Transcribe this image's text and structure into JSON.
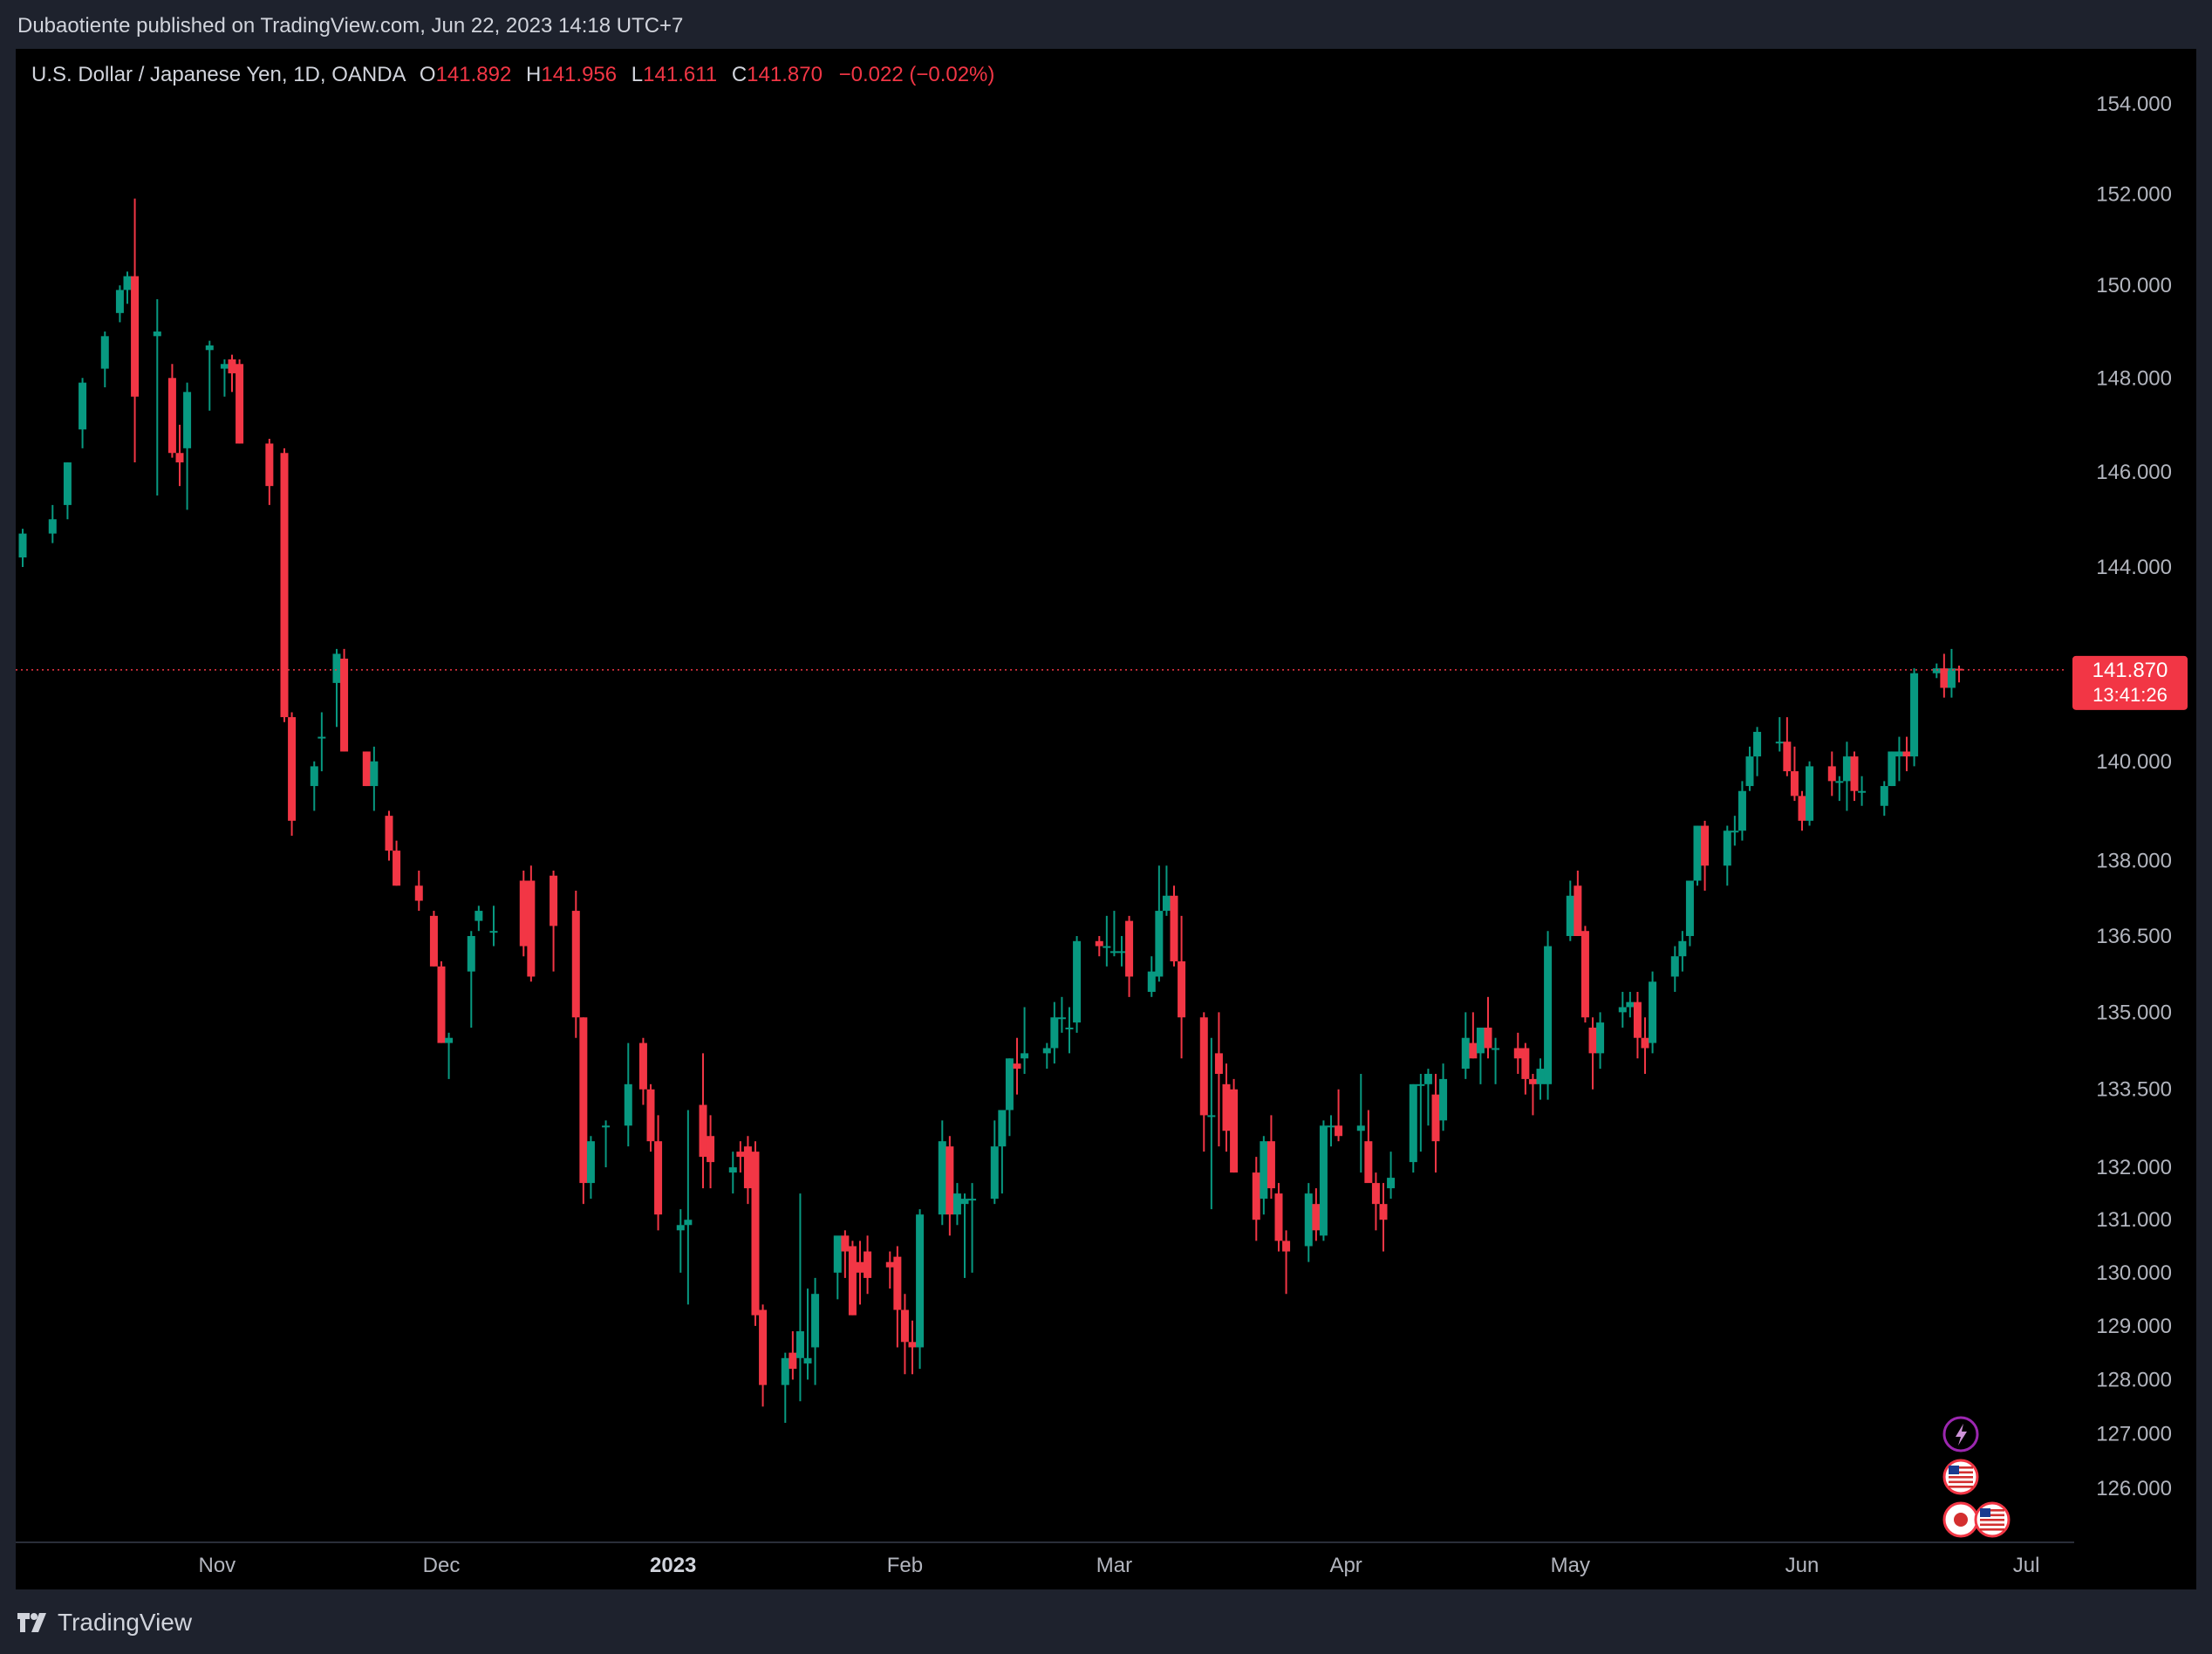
{
  "header": {
    "published": "Dubaotiente published on TradingView.com, Jun 22, 2023 14:18 UTC+7"
  },
  "legend": {
    "symbol": "U.S. Dollar / Japanese Yen, 1D, OANDA",
    "o_label": "O",
    "o_value": "141.892",
    "h_label": "H",
    "h_value": "141.956",
    "l_label": "L",
    "l_value": "141.611",
    "c_label": "C",
    "c_value": "141.870",
    "change": "−0.022 (−0.02%)"
  },
  "price_tag": {
    "price": "141.870",
    "countdown": "13:41:26"
  },
  "footer": {
    "brand": "TradingView"
  },
  "colors": {
    "up": "#089981",
    "down": "#f23645",
    "background": "#000000",
    "frame": "#1e222d",
    "axis_text": "#b2b5be",
    "price_line": "#f23645",
    "event_purple": "#9c27b0"
  },
  "event_icons": [
    "lightning-icon",
    "us-flag-icon",
    "japan-flag-icon",
    "us-flag-icon"
  ],
  "chart_data": {
    "type": "candlestick",
    "title": "U.S. Dollar / Japanese Yen, 1D, OANDA",
    "y_scale": "log",
    "y_ticks": [
      "154.000",
      "152.000",
      "150.000",
      "148.000",
      "146.000",
      "144.000",
      "140.000",
      "138.000",
      "136.500",
      "135.000",
      "133.500",
      "132.000",
      "131.000",
      "130.000",
      "129.000",
      "128.000",
      "127.000",
      "126.000"
    ],
    "x_ticks": [
      "Nov",
      "Dec",
      "2023",
      "Feb",
      "Mar",
      "Apr",
      "May",
      "Jun",
      "Jul"
    ],
    "last_price": 141.87,
    "ohlc_points": [
      [
        "2022-10-06",
        144.2,
        144.8,
        144.0,
        144.7
      ],
      [
        "2022-10-10",
        144.7,
        145.3,
        144.5,
        145.0
      ],
      [
        "2022-10-12",
        145.3,
        146.2,
        145.0,
        146.2
      ],
      [
        "2022-10-14",
        146.9,
        148.0,
        146.5,
        147.9
      ],
      [
        "2022-10-17",
        148.2,
        149.0,
        147.8,
        148.9
      ],
      [
        "2022-10-19",
        149.4,
        150.0,
        149.2,
        149.9
      ],
      [
        "2022-10-20",
        149.9,
        150.3,
        149.6,
        150.2
      ],
      [
        "2022-10-21",
        150.2,
        151.9,
        146.2,
        147.6
      ],
      [
        "2022-10-24",
        148.9,
        149.7,
        145.5,
        149.0
      ],
      [
        "2022-10-26",
        148.0,
        148.3,
        146.3,
        146.4
      ],
      [
        "2022-10-27",
        146.4,
        147.0,
        145.7,
        146.2
      ],
      [
        "2022-10-28",
        146.5,
        147.9,
        145.2,
        147.7
      ],
      [
        "2022-10-31",
        148.6,
        148.8,
        147.3,
        148.7
      ],
      [
        "2022-11-02",
        148.2,
        148.4,
        147.6,
        148.3
      ],
      [
        "2022-11-03",
        148.4,
        148.5,
        147.7,
        148.1
      ],
      [
        "2022-11-04",
        148.3,
        148.4,
        146.6,
        146.6
      ],
      [
        "2022-11-08",
        146.6,
        146.7,
        145.3,
        145.7
      ],
      [
        "2022-11-10",
        146.4,
        146.5,
        140.8,
        140.9
      ],
      [
        "2022-11-11",
        140.9,
        141.0,
        138.5,
        138.8
      ],
      [
        "2022-11-14",
        139.5,
        140.0,
        139.0,
        139.9
      ],
      [
        "2022-11-15",
        140.5,
        141.0,
        139.8,
        140.5
      ],
      [
        "2022-11-17",
        141.6,
        142.3,
        140.7,
        142.2
      ],
      [
        "2022-11-18",
        142.1,
        142.3,
        140.2,
        140.2
      ],
      [
        "2022-11-21",
        140.2,
        140.2,
        139.5,
        139.5
      ],
      [
        "2022-11-22",
        139.5,
        140.3,
        139.0,
        140.0
      ],
      [
        "2022-11-24",
        138.9,
        139.0,
        138.0,
        138.2
      ],
      [
        "2022-11-25",
        138.2,
        138.4,
        137.5,
        137.5
      ],
      [
        "2022-11-28",
        137.5,
        137.8,
        137.0,
        137.2
      ],
      [
        "2022-11-30",
        136.9,
        137.0,
        135.9,
        135.9
      ],
      [
        "2022-12-01",
        135.9,
        136.0,
        134.4,
        134.4
      ],
      [
        "2022-12-02",
        134.4,
        134.6,
        133.7,
        134.5
      ],
      [
        "2022-12-05",
        135.8,
        136.6,
        134.7,
        136.5
      ],
      [
        "2022-12-06",
        136.8,
        137.1,
        136.6,
        137.0
      ],
      [
        "2022-12-08",
        136.6,
        137.1,
        136.3,
        136.6
      ],
      [
        "2022-12-12",
        137.6,
        137.8,
        136.1,
        136.3
      ],
      [
        "2022-12-13",
        137.6,
        137.9,
        135.6,
        135.7
      ],
      [
        "2022-12-16",
        137.7,
        137.8,
        135.8,
        136.7
      ],
      [
        "2022-12-19",
        137.0,
        137.4,
        134.5,
        134.9
      ],
      [
        "2022-12-20",
        134.9,
        134.9,
        131.3,
        131.7
      ],
      [
        "2022-12-21",
        131.7,
        132.6,
        131.4,
        132.5
      ],
      [
        "2022-12-23",
        132.8,
        132.9,
        132.0,
        132.8
      ],
      [
        "2022-12-26",
        132.8,
        134.4,
        132.4,
        133.6
      ],
      [
        "2022-12-28",
        134.4,
        134.5,
        133.2,
        133.5
      ],
      [
        "2022-12-29",
        133.5,
        133.6,
        132.3,
        132.5
      ],
      [
        "2022-12-30",
        132.5,
        133.0,
        130.8,
        131.1
      ],
      [
        "2023-01-02",
        130.8,
        131.2,
        130.0,
        130.9
      ],
      [
        "2023-01-03",
        130.9,
        133.1,
        129.4,
        131.0
      ],
      [
        "2023-01-05",
        133.2,
        134.2,
        131.6,
        132.2
      ],
      [
        "2023-01-06",
        132.6,
        133.0,
        131.6,
        132.1
      ],
      [
        "2023-01-09",
        131.9,
        132.3,
        131.5,
        132.0
      ],
      [
        "2023-01-10",
        132.3,
        132.5,
        131.9,
        132.2
      ],
      [
        "2023-01-11",
        132.4,
        132.6,
        131.3,
        131.6
      ],
      [
        "2023-01-12",
        132.3,
        132.5,
        129.0,
        129.2
      ],
      [
        "2023-01-13",
        129.3,
        129.4,
        127.5,
        127.9
      ],
      [
        "2023-01-16",
        127.9,
        128.5,
        127.2,
        128.4
      ],
      [
        "2023-01-17",
        128.5,
        128.9,
        128.0,
        128.2
      ],
      [
        "2023-01-18",
        128.4,
        131.5,
        127.6,
        128.9
      ],
      [
        "2023-01-19",
        128.3,
        129.7,
        128.0,
        128.4
      ],
      [
        "2023-01-20",
        128.6,
        129.9,
        127.9,
        129.6
      ],
      [
        "2023-01-23",
        130.0,
        130.6,
        129.5,
        130.7
      ],
      [
        "2023-01-24",
        130.7,
        130.8,
        129.9,
        130.4
      ],
      [
        "2023-01-25",
        130.5,
        130.6,
        129.2,
        129.2
      ],
      [
        "2023-01-26",
        130.2,
        130.6,
        129.4,
        130.0
      ],
      [
        "2023-01-27",
        130.4,
        130.7,
        129.6,
        129.9
      ],
      [
        "2023-01-30",
        130.2,
        130.4,
        129.7,
        130.1
      ],
      [
        "2023-01-31",
        130.3,
        130.5,
        128.6,
        129.3
      ],
      [
        "2023-02-01",
        129.3,
        129.6,
        128.1,
        128.7
      ],
      [
        "2023-02-02",
        128.7,
        129.1,
        128.1,
        128.6
      ],
      [
        "2023-02-03",
        128.6,
        131.2,
        128.2,
        131.1
      ],
      [
        "2023-02-06",
        131.1,
        132.9,
        130.9,
        132.5
      ],
      [
        "2023-02-07",
        132.4,
        132.6,
        130.7,
        131.1
      ],
      [
        "2023-02-08",
        131.1,
        131.7,
        130.9,
        131.5
      ],
      [
        "2023-02-09",
        131.3,
        131.5,
        129.9,
        131.4
      ],
      [
        "2023-02-10",
        131.4,
        131.7,
        130.0,
        131.4
      ],
      [
        "2023-02-13",
        131.4,
        132.9,
        131.3,
        132.4
      ],
      [
        "2023-02-14",
        132.4,
        133.1,
        131.5,
        133.1
      ],
      [
        "2023-02-15",
        133.1,
        134.1,
        132.6,
        134.1
      ],
      [
        "2023-02-16",
        134.0,
        134.5,
        133.4,
        133.9
      ],
      [
        "2023-02-17",
        134.1,
        135.1,
        133.8,
        134.2
      ],
      [
        "2023-02-20",
        134.2,
        134.4,
        133.9,
        134.3
      ],
      [
        "2023-02-21",
        134.3,
        135.2,
        134.0,
        134.9
      ],
      [
        "2023-02-22",
        134.9,
        135.3,
        134.6,
        134.9
      ],
      [
        "2023-02-23",
        134.7,
        135.1,
        134.2,
        134.7
      ],
      [
        "2023-02-24",
        134.8,
        136.5,
        134.6,
        136.4
      ],
      [
        "2023-02-27",
        136.4,
        136.5,
        136.1,
        136.3
      ],
      [
        "2023-02-28",
        136.3,
        136.9,
        135.9,
        136.3
      ],
      [
        "2023-03-01",
        136.2,
        137.0,
        136.1,
        136.2
      ],
      [
        "2023-03-02",
        136.2,
        136.5,
        135.9,
        136.2
      ],
      [
        "2023-03-03",
        136.8,
        136.9,
        135.3,
        135.7
      ],
      [
        "2023-03-06",
        135.4,
        136.1,
        135.3,
        135.8
      ],
      [
        "2023-03-07",
        135.7,
        137.9,
        135.6,
        137.0
      ],
      [
        "2023-03-08",
        137.0,
        137.9,
        136.9,
        137.3
      ],
      [
        "2023-03-09",
        137.3,
        137.5,
        135.9,
        136.0
      ],
      [
        "2023-03-10",
        136.0,
        136.9,
        134.1,
        134.9
      ],
      [
        "2023-03-13",
        134.9,
        135.0,
        132.3,
        133.0
      ],
      [
        "2023-03-14",
        133.0,
        134.5,
        131.2,
        133.0
      ],
      [
        "2023-03-15",
        134.2,
        135.0,
        132.4,
        133.8
      ],
      [
        "2023-03-16",
        133.6,
        134.0,
        132.3,
        132.7
      ],
      [
        "2023-03-17",
        133.5,
        133.7,
        131.9,
        131.9
      ],
      [
        "2023-03-20",
        131.9,
        132.2,
        130.6,
        131.0
      ],
      [
        "2023-03-21",
        131.4,
        132.6,
        131.1,
        132.5
      ],
      [
        "2023-03-22",
        132.5,
        133.0,
        131.4,
        131.6
      ],
      [
        "2023-03-23",
        131.5,
        131.7,
        130.4,
        130.6
      ],
      [
        "2023-03-24",
        130.6,
        130.8,
        129.6,
        130.4
      ],
      [
        "2023-03-27",
        130.5,
        131.7,
        130.2,
        131.5
      ],
      [
        "2023-03-28",
        131.3,
        131.6,
        130.6,
        130.8
      ],
      [
        "2023-03-29",
        130.7,
        132.9,
        130.6,
        132.8
      ],
      [
        "2023-03-30",
        132.8,
        133.0,
        132.4,
        132.8
      ],
      [
        "2023-03-31",
        132.8,
        133.5,
        132.5,
        132.6
      ],
      [
        "2023-04-03",
        132.7,
        133.8,
        131.9,
        132.8
      ],
      [
        "2023-04-04",
        132.5,
        133.1,
        131.8,
        131.7
      ],
      [
        "2023-04-05",
        131.7,
        131.9,
        130.8,
        131.3
      ],
      [
        "2023-04-06",
        131.3,
        131.7,
        130.4,
        131.0
      ],
      [
        "2023-04-07",
        131.6,
        132.3,
        131.4,
        131.8
      ],
      [
        "2023-04-10",
        132.1,
        133.6,
        131.9,
        133.6
      ],
      [
        "2023-04-11",
        133.6,
        133.8,
        132.3,
        133.6
      ],
      [
        "2023-04-12",
        133.6,
        133.9,
        132.8,
        133.8
      ],
      [
        "2023-04-13",
        133.4,
        133.8,
        131.9,
        132.5
      ],
      [
        "2023-04-14",
        132.9,
        134.0,
        132.7,
        133.7
      ],
      [
        "2023-04-17",
        133.9,
        135.0,
        133.7,
        134.5
      ],
      [
        "2023-04-18",
        134.4,
        135.0,
        134.1,
        134.1
      ],
      [
        "2023-04-19",
        134.2,
        134.7,
        133.6,
        134.7
      ],
      [
        "2023-04-20",
        134.7,
        135.3,
        134.1,
        134.3
      ],
      [
        "2023-04-21",
        134.3,
        134.5,
        133.6,
        134.3
      ],
      [
        "2023-04-24",
        134.3,
        134.6,
        133.8,
        134.1
      ],
      [
        "2023-04-25",
        134.3,
        134.4,
        133.4,
        133.7
      ],
      [
        "2023-04-26",
        133.7,
        133.8,
        133.0,
        133.6
      ],
      [
        "2023-04-27",
        133.6,
        134.1,
        133.3,
        133.9
      ],
      [
        "2023-04-28",
        133.6,
        136.6,
        133.3,
        136.3
      ],
      [
        "2023-05-01",
        136.5,
        137.6,
        136.4,
        137.3
      ],
      [
        "2023-05-02",
        137.5,
        137.8,
        136.5,
        136.5
      ],
      [
        "2023-05-03",
        136.6,
        136.7,
        134.8,
        134.9
      ],
      [
        "2023-05-04",
        134.7,
        134.9,
        133.5,
        134.2
      ],
      [
        "2023-05-05",
        134.2,
        135.0,
        133.9,
        134.8
      ],
      [
        "2023-05-08",
        135.0,
        135.4,
        134.7,
        135.1
      ],
      [
        "2023-05-09",
        135.1,
        135.4,
        134.9,
        135.2
      ],
      [
        "2023-05-10",
        135.2,
        135.4,
        134.1,
        134.5
      ],
      [
        "2023-05-11",
        134.5,
        134.9,
        133.8,
        134.3
      ],
      [
        "2023-05-12",
        134.4,
        135.8,
        134.2,
        135.6
      ],
      [
        "2023-05-15",
        135.7,
        136.3,
        135.4,
        136.1
      ],
      [
        "2023-05-16",
        136.1,
        136.6,
        135.8,
        136.4
      ],
      [
        "2023-05-17",
        136.5,
        137.6,
        136.3,
        137.6
      ],
      [
        "2023-05-18",
        137.6,
        138.7,
        137.5,
        138.7
      ],
      [
        "2023-05-19",
        138.7,
        138.8,
        137.4,
        137.9
      ],
      [
        "2023-05-22",
        137.9,
        138.7,
        137.5,
        138.6
      ],
      [
        "2023-05-23",
        138.6,
        138.9,
        138.3,
        138.6
      ],
      [
        "2023-05-24",
        138.6,
        139.6,
        138.4,
        139.4
      ],
      [
        "2023-05-25",
        139.5,
        140.3,
        139.4,
        140.1
      ],
      [
        "2023-05-26",
        140.1,
        140.7,
        139.7,
        140.6
      ],
      [
        "2023-05-29",
        140.4,
        140.9,
        140.2,
        140.4
      ],
      [
        "2023-05-30",
        140.4,
        140.9,
        139.7,
        139.8
      ],
      [
        "2023-05-31",
        139.8,
        140.3,
        139.2,
        139.3
      ],
      [
        "2023-06-01",
        139.3,
        139.4,
        138.6,
        138.8
      ],
      [
        "2023-06-02",
        138.8,
        140.0,
        138.7,
        139.9
      ],
      [
        "2023-06-05",
        139.9,
        140.2,
        139.3,
        139.6
      ],
      [
        "2023-06-06",
        139.6,
        139.7,
        139.2,
        139.6
      ],
      [
        "2023-06-07",
        139.6,
        140.4,
        139.0,
        140.1
      ],
      [
        "2023-06-08",
        140.1,
        140.2,
        139.2,
        139.4
      ],
      [
        "2023-06-09",
        139.4,
        139.7,
        139.1,
        139.4
      ],
      [
        "2023-06-12",
        139.1,
        139.6,
        138.9,
        139.5
      ],
      [
        "2023-06-13",
        139.5,
        140.2,
        139.5,
        140.2
      ],
      [
        "2023-06-14",
        140.1,
        140.5,
        139.6,
        140.2
      ],
      [
        "2023-06-15",
        140.2,
        140.5,
        139.8,
        140.1
      ],
      [
        "2023-06-16",
        140.1,
        141.9,
        139.9,
        141.8
      ],
      [
        "2023-06-19",
        141.8,
        142.0,
        141.7,
        141.9
      ],
      [
        "2023-06-20",
        141.9,
        142.2,
        141.3,
        141.5
      ],
      [
        "2023-06-21",
        141.5,
        142.3,
        141.3,
        141.9
      ],
      [
        "2023-06-22",
        141.892,
        141.956,
        141.611,
        141.87
      ]
    ]
  }
}
